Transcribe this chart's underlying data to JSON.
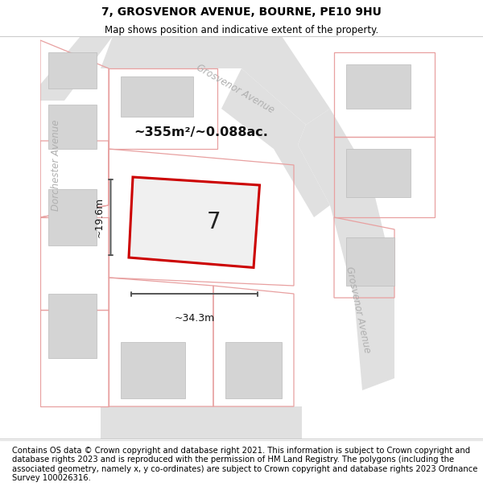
{
  "title": "7, GROSVENOR AVENUE, BOURNE, PE10 9HU",
  "subtitle": "Map shows position and indicative extent of the property.",
  "footer": "Contains OS data © Crown copyright and database right 2021. This information is subject to Crown copyright and database rights 2023 and is reproduced with the permission of HM Land Registry. The polygons (including the associated geometry, namely x, y co-ordinates) are subject to Crown copyright and database rights 2023 Ordnance Survey 100026316.",
  "map_bg": "#f2f2f2",
  "title_fontsize": 10,
  "subtitle_fontsize": 8.5,
  "footer_fontsize": 7.2,
  "area_text": "~355m²/~0.088ac.",
  "property_number": "7",
  "width_label": "~34.3m",
  "height_label": "~19.6m",
  "red_line_color": "#cc0000",
  "building_color": "#d4d4d4",
  "road_color": "#e8e8e8",
  "pink_color": "#e8a0a0",
  "street_label_color": "#b0b0b0",
  "arrow_color": "#555555",
  "white": "#ffffff"
}
